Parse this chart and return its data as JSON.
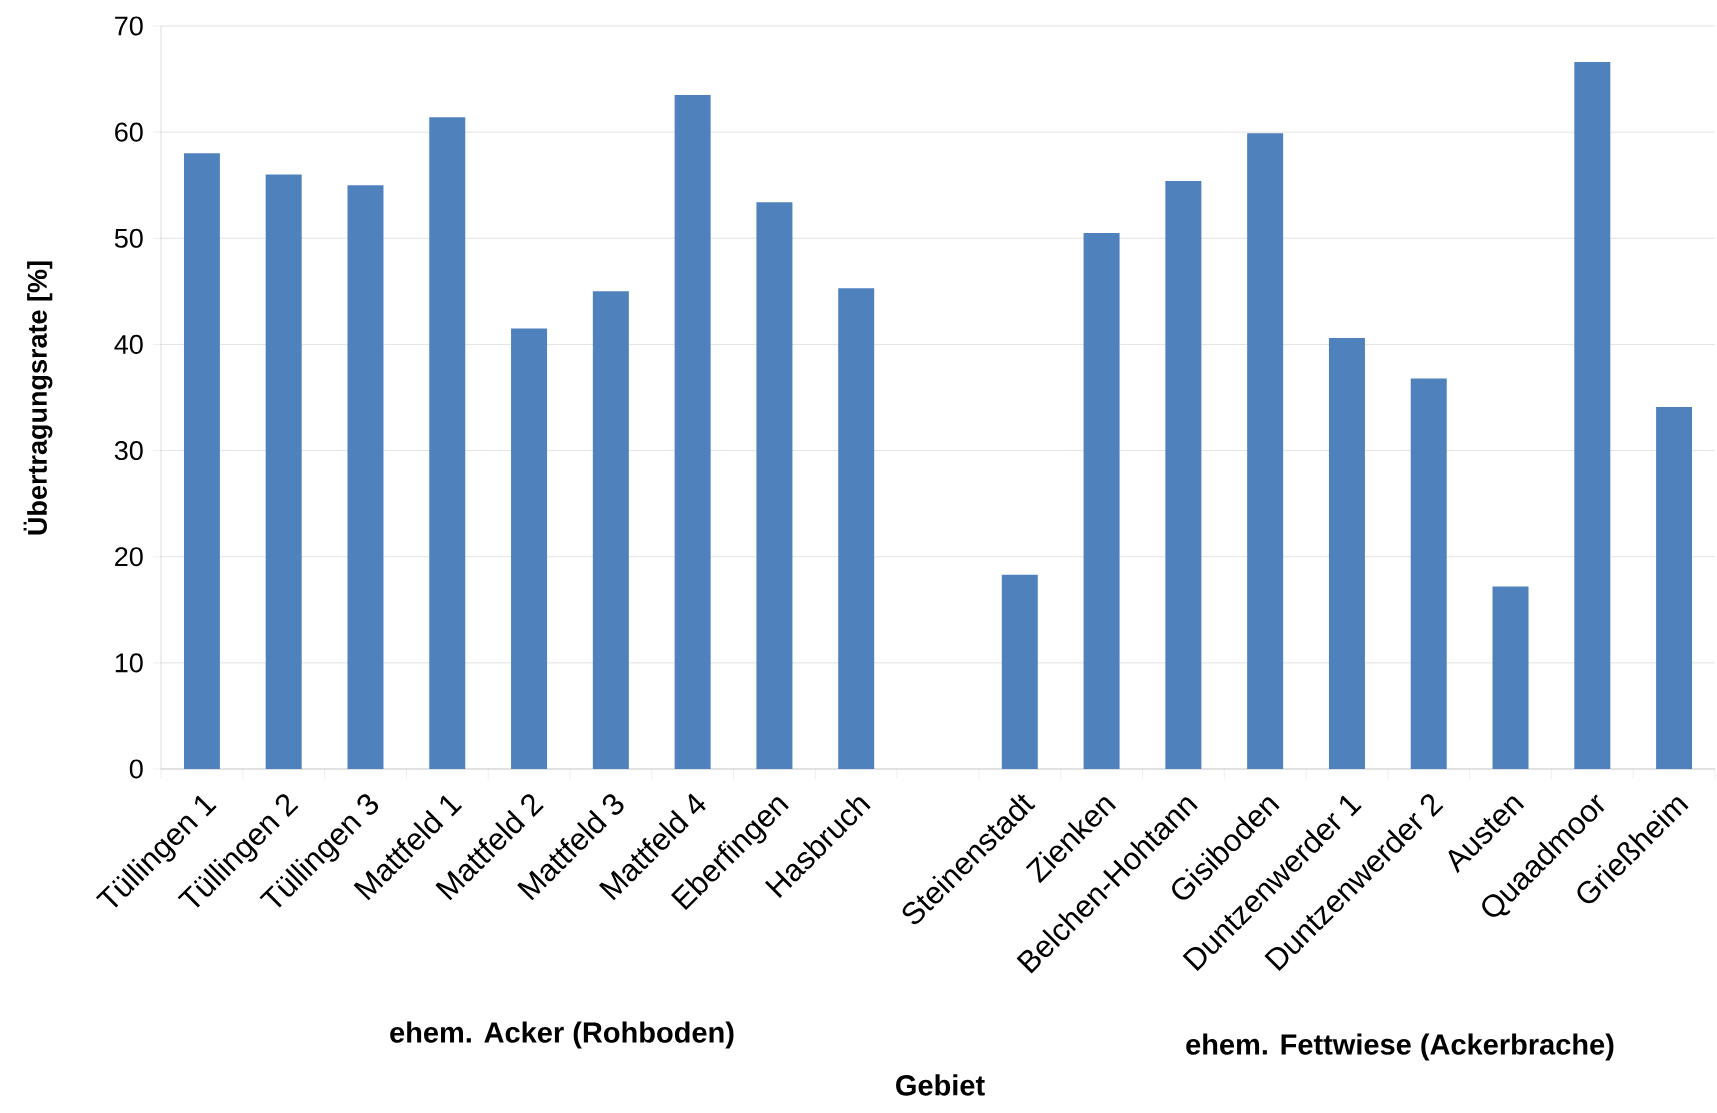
{
  "chart_data": {
    "type": "bar",
    "xlabel": "Gebiet",
    "ylabel": "Übertragungsrate [%]",
    "categories": [
      "Tüllingen 1",
      "Tüllingen 2",
      "Tüllingen 3",
      "Mattfeld 1",
      "Mattfeld 2",
      "Mattfeld 3",
      "Mattfeld 4",
      "Eberfingen",
      "Hasbruch",
      null,
      "Steinenstadt",
      "Zienken",
      "Belchen-Hohtann",
      "Gisiboden",
      "Duntzenwerder 1",
      "Duntzenwerder 2",
      "Austen",
      "Quaadmoor",
      "Grießheim"
    ],
    "values": [
      58.0,
      56.0,
      55.0,
      61.4,
      41.5,
      45.0,
      63.5,
      53.4,
      45.3,
      null,
      18.3,
      50.5,
      55.4,
      59.9,
      40.6,
      36.8,
      17.2,
      66.6,
      34.1
    ],
    "color": "#4f81bd",
    "ylim": [
      0,
      70
    ],
    "yticks": [
      0,
      10,
      20,
      30,
      40,
      50,
      60,
      70
    ],
    "grid": "y",
    "annotations": [
      "ehem. Acker (Rohboden)",
      "ehem. Fettwiese (Ackerbrache)"
    ]
  }
}
